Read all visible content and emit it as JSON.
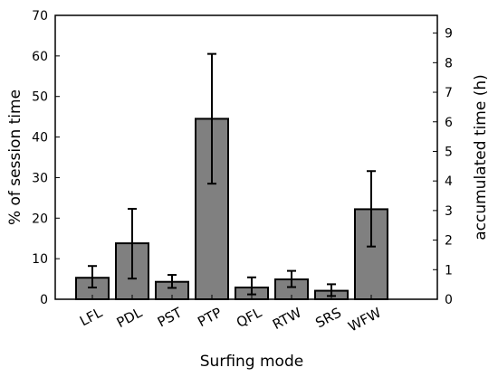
{
  "chart_data": {
    "type": "bar",
    "title": "",
    "xlabel": "Surfing mode",
    "ylabel": "% of session time",
    "y2label": "accumulated time (h)",
    "categories": [
      "LFL",
      "PDL",
      "PST",
      "PTP",
      "QFL",
      "RTW",
      "SRS",
      "WFW"
    ],
    "values": [
      5.3,
      13.8,
      4.3,
      44.5,
      2.9,
      4.9,
      2.1,
      22.2
    ],
    "error_low": [
      2.9,
      5.1,
      2.8,
      28.5,
      1.2,
      3.0,
      0.8,
      13.0
    ],
    "error_high": [
      8.2,
      22.3,
      6.0,
      60.5,
      5.4,
      7.0,
      3.7,
      31.6
    ],
    "ylim": [
      0,
      70
    ],
    "yticks": [
      0,
      10,
      20,
      30,
      40,
      50,
      60,
      70
    ],
    "y2lim": [
      0,
      9.6
    ],
    "y2ticks": [
      0,
      1,
      2,
      3,
      4,
      5,
      6,
      7,
      8,
      9
    ],
    "grid": false,
    "bar_color": "#808080",
    "edge_color": "#000000"
  }
}
